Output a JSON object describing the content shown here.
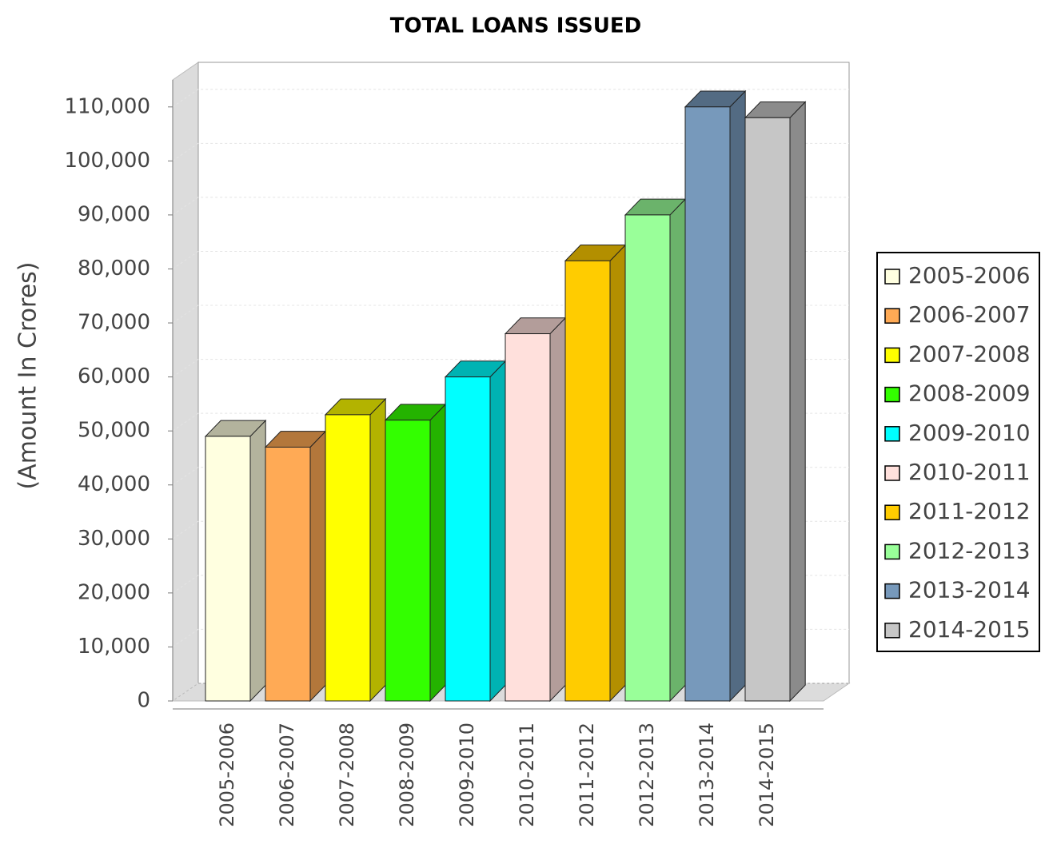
{
  "chart_data": {
    "type": "bar3d",
    "title": "TOTAL LOANS ISSUED",
    "y_label": "(Amount In Crores)",
    "categories": [
      "2005-2006",
      "2006-2007",
      "2007-2008",
      "2008-2009",
      "2009-2010",
      "2010-2011",
      "2011-2012",
      "2012-2013",
      "2013-2014",
      "2014-2015"
    ],
    "values": [
      49000,
      47000,
      53000,
      52000,
      60000,
      68000,
      81500,
      90000,
      110000,
      108000
    ],
    "colors": [
      "#ffffe0",
      "#ffaa55",
      "#ffff00",
      "#33ff00",
      "#00ffff",
      "#ffe0dc",
      "#ffcc00",
      "#99ff99",
      "#7799bb",
      "#c6c6c6"
    ],
    "ylim": [
      0,
      115000
    ],
    "yticks": [
      {
        "value": 0,
        "label": "0"
      },
      {
        "value": 10000,
        "label": "10,000"
      },
      {
        "value": 20000,
        "label": "20,000"
      },
      {
        "value": 30000,
        "label": "30,000"
      },
      {
        "value": 40000,
        "label": "40,000"
      },
      {
        "value": 50000,
        "label": "50,000"
      },
      {
        "value": 60000,
        "label": "60,000"
      },
      {
        "value": 70000,
        "label": "70,000"
      },
      {
        "value": 80000,
        "label": "80,000"
      },
      {
        "value": 90000,
        "label": "90,000"
      },
      {
        "value": 100000,
        "label": "100,000"
      },
      {
        "value": 110000,
        "label": "110,000"
      }
    ],
    "grid": true,
    "legend": "right"
  }
}
